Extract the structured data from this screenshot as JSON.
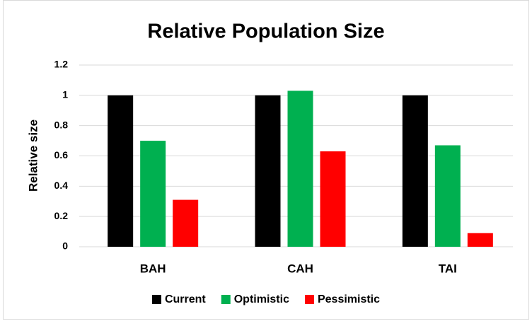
{
  "chart_data": {
    "type": "bar",
    "title": "Relative Population Size",
    "y_label": "Relative size",
    "categories": [
      "BAH",
      "CAH",
      "TAI"
    ],
    "series": [
      {
        "name": "Current",
        "color": "#000000",
        "values": [
          1,
          1,
          1
        ]
      },
      {
        "name": "Optimistic",
        "color": "#00b050",
        "values": [
          0.7,
          1.03,
          0.67
        ]
      },
      {
        "name": "Pessimistic",
        "color": "#ff0000",
        "values": [
          0.31,
          0.63,
          0.09
        ]
      }
    ],
    "ylim": [
      0,
      1.2
    ],
    "yticks": [
      0,
      0.2,
      0.4,
      0.6,
      0.8,
      1,
      1.2
    ],
    "grid": true,
    "legend": "bottom"
  }
}
